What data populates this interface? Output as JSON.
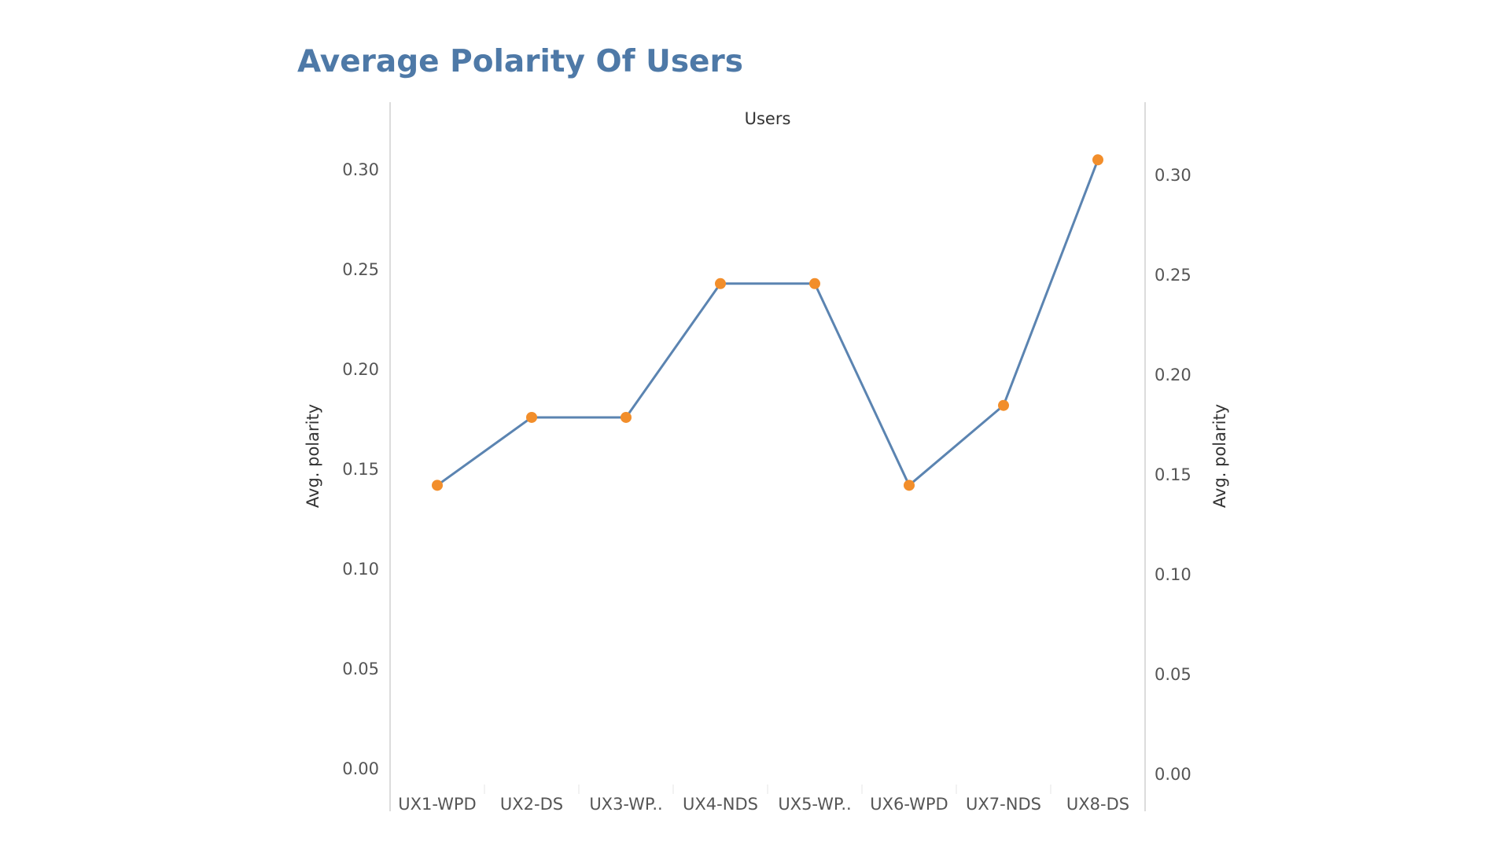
{
  "chart_data": {
    "type": "line",
    "title": "Average Polarity Of Users",
    "xlabel": "Users",
    "ylabel_left": "Avg. polarity",
    "ylabel_right": "Avg. polarity",
    "categories": [
      "UX1-WPD",
      "UX2-DS",
      "UX3-WP..",
      "UX4-NDS",
      "UX5-WP..",
      "UX6-WPD",
      "UX7-NDS",
      "UX8-DS"
    ],
    "values": [
      0.142,
      0.176,
      0.176,
      0.243,
      0.243,
      0.142,
      0.182,
      0.305
    ],
    "ylim": [
      0,
      0.32
    ],
    "yticks_left": [
      "0.00",
      "0.05",
      "0.10",
      "0.15",
      "0.20",
      "0.25",
      "0.30"
    ],
    "yticks_right": [
      "0.00",
      "0.05",
      "0.10",
      "0.15",
      "0.20",
      "0.25",
      "0.30"
    ],
    "ytick_values": [
      0,
      0.05,
      0.1,
      0.15,
      0.2,
      0.25,
      0.3
    ],
    "grid": false,
    "colors": {
      "line": "#5b84b1",
      "marker": "#f28e2b",
      "title": "#4e79a7",
      "axis_line": "#d0d0d0"
    }
  }
}
